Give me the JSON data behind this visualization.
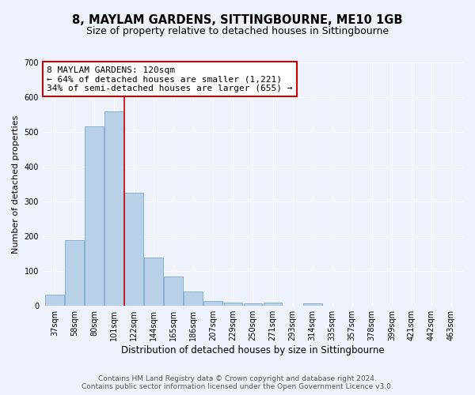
{
  "title": "8, MAYLAM GARDENS, SITTINGBOURNE, ME10 1GB",
  "subtitle": "Size of property relative to detached houses in Sittingbourne",
  "xlabel": "Distribution of detached houses by size in Sittingbourne",
  "ylabel": "Number of detached properties",
  "categories": [
    "37sqm",
    "58sqm",
    "80sqm",
    "101sqm",
    "122sqm",
    "144sqm",
    "165sqm",
    "186sqm",
    "207sqm",
    "229sqm",
    "250sqm",
    "271sqm",
    "293sqm",
    "314sqm",
    "335sqm",
    "357sqm",
    "378sqm",
    "399sqm",
    "421sqm",
    "442sqm",
    "463sqm"
  ],
  "values": [
    33,
    190,
    515,
    560,
    325,
    138,
    85,
    42,
    13,
    10,
    7,
    10,
    0,
    7,
    0,
    0,
    0,
    0,
    0,
    0,
    0
  ],
  "bar_color": "#b8d0e8",
  "bar_edge_color": "#7aaac8",
  "highlight_line_color": "#cc0000",
  "annotation_text": "8 MAYLAM GARDENS: 120sqm\n← 64% of detached houses are smaller (1,221)\n34% of semi-detached houses are larger (655) →",
  "annotation_box_facecolor": "#ffffff",
  "annotation_box_edgecolor": "#cc0000",
  "ylim": [
    0,
    700
  ],
  "yticks": [
    0,
    100,
    200,
    300,
    400,
    500,
    600,
    700
  ],
  "background_color": "#eef2fb",
  "plot_bg_color": "#eef2fb",
  "footer": "Contains HM Land Registry data © Crown copyright and database right 2024.\nContains public sector information licensed under the Open Government Licence v3.0.",
  "title_fontsize": 10.5,
  "subtitle_fontsize": 9,
  "xlabel_fontsize": 8.5,
  "ylabel_fontsize": 8,
  "tick_fontsize": 7,
  "annotation_fontsize": 8,
  "footer_fontsize": 6.5,
  "highlight_bar_index": 4
}
